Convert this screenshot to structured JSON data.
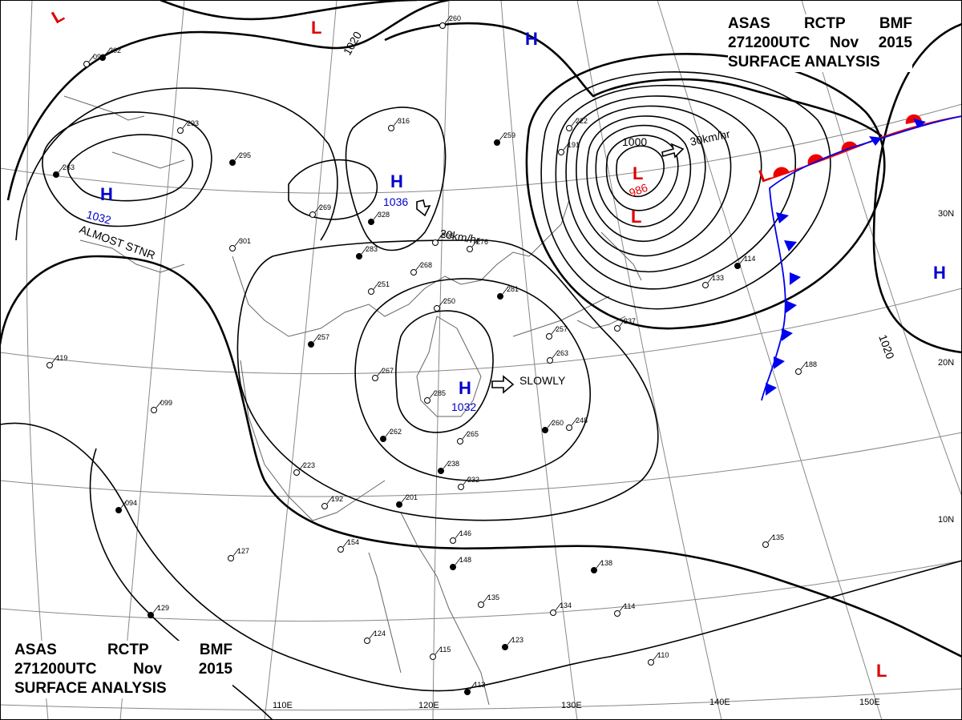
{
  "header": {
    "line1": [
      "ASAS",
      "RCTP",
      "BMF"
    ],
    "line2": [
      "271200UTC",
      "Nov",
      "2015"
    ],
    "line3": "SURFACE ANALYSIS"
  },
  "pressure_centers": [
    {
      "type": "H",
      "value": "1036",
      "motion": "20km/hr",
      "color": "#0000cc"
    },
    {
      "type": "H",
      "value": "1032",
      "motion": "SLOWLY",
      "color": "#0000cc"
    },
    {
      "type": "H",
      "value": "1032",
      "note": "ALMOST STNR",
      "color": "#0000cc"
    },
    {
      "type": "L",
      "value": "986",
      "motion": "30km/hr",
      "color": "#dd0000"
    },
    {
      "type": "H",
      "value": "",
      "color": "#0000cc"
    },
    {
      "type": "H",
      "value": "",
      "color": "#0000cc"
    },
    {
      "type": "L",
      "value": "",
      "color": "#dd0000"
    },
    {
      "type": "L",
      "value": "",
      "color": "#dd0000"
    },
    {
      "type": "L",
      "value": "",
      "color": "#dd0000"
    },
    {
      "type": "L",
      "value": "",
      "color": "#dd0000"
    }
  ],
  "isobar_labels": [
    "1020",
    "1000",
    "1020"
  ],
  "latitude_labels": [
    "30N",
    "20N",
    "10N"
  ],
  "longitude_labels": [
    "110E",
    "120E",
    "130E",
    "140E",
    "150E"
  ],
  "station_values": [
    "202",
    "260",
    "316",
    "295",
    "293",
    "269",
    "328",
    "306",
    "276",
    "263",
    "191",
    "222",
    "259",
    "250",
    "301",
    "283",
    "268",
    "251",
    "257",
    "267",
    "285",
    "262",
    "223",
    "192",
    "201",
    "265",
    "232",
    "238",
    "154",
    "127",
    "094",
    "119",
    "099",
    "281",
    "257",
    "263",
    "260",
    "248",
    "237",
    "114",
    "133",
    "135",
    "138",
    "188",
    "146",
    "148",
    "135",
    "134",
    "123",
    "124",
    "115",
    "113",
    "110",
    "114",
    "129",
    "096"
  ],
  "colors": {
    "isobar": "#000000",
    "grid": "#777777",
    "coast": "#666666",
    "warm_front": "#ee0000",
    "cold_front": "#0000ee",
    "high": "#0000cc",
    "low": "#dd0000"
  }
}
